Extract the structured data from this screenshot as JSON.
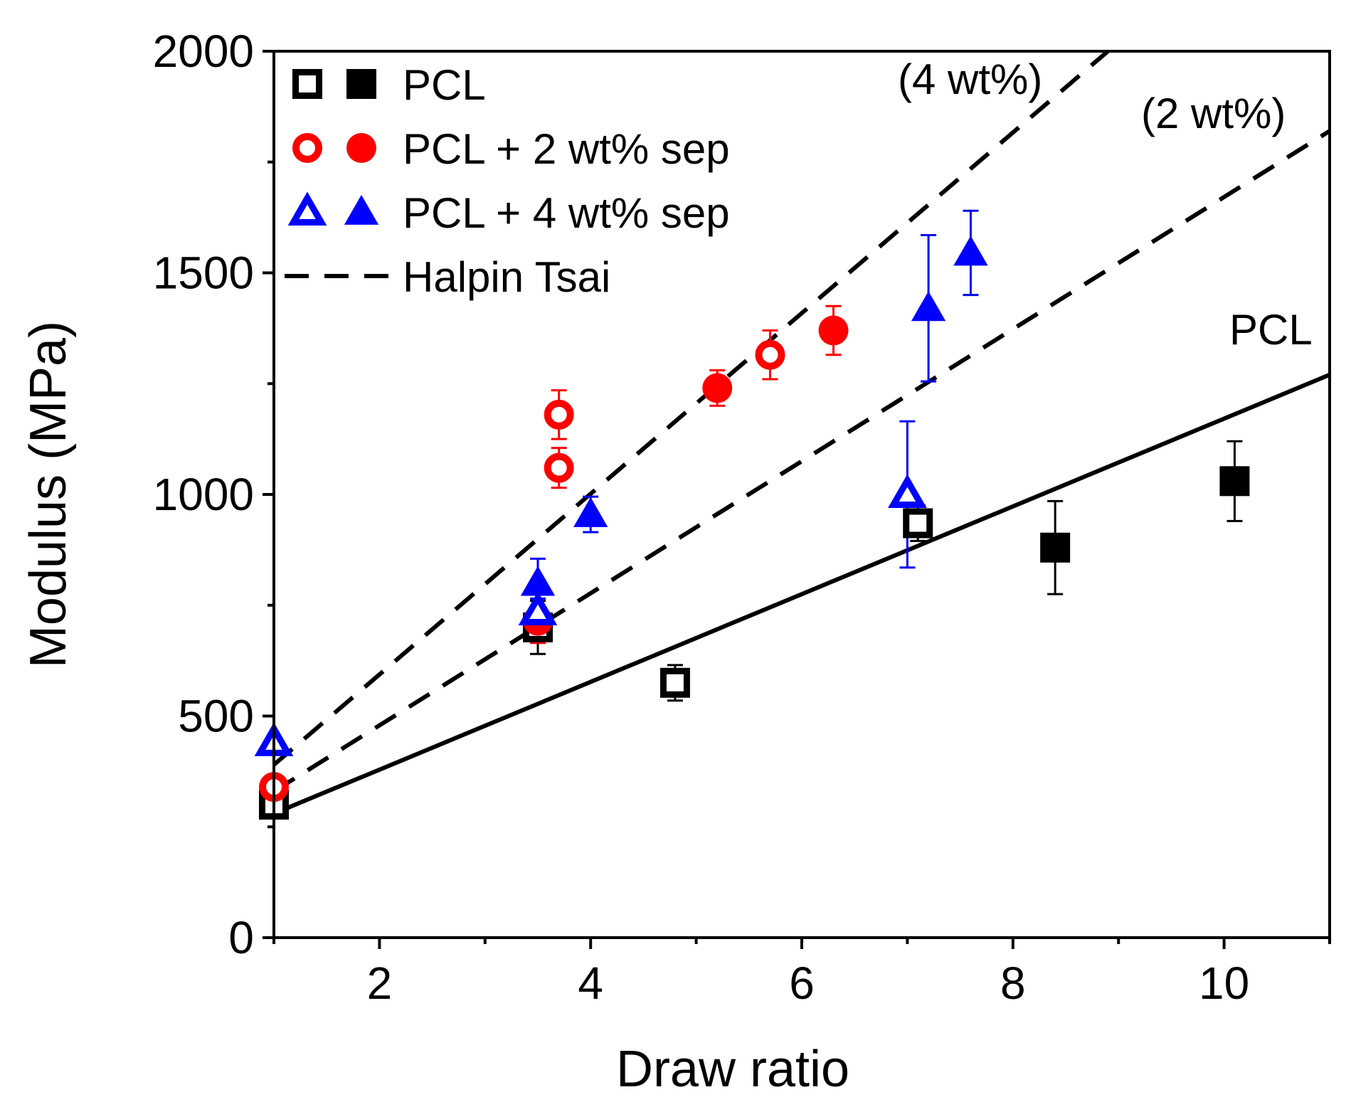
{
  "chart_data": {
    "type": "scatter",
    "xlabel": "Draw ratio",
    "ylabel": "Modulus (MPa)",
    "xlim": [
      1,
      11
    ],
    "ylim": [
      0,
      2000
    ],
    "x_ticks": [
      2,
      4,
      6,
      8,
      10
    ],
    "y_ticks": [
      0,
      500,
      1000,
      1500,
      2000
    ],
    "grid": false,
    "legend_position": "top-left",
    "legend": [
      {
        "label": "PCL",
        "markers": [
          "open-square",
          "filled-square"
        ],
        "color": "#000000"
      },
      {
        "label": "PCL + 2 wt% sep",
        "markers": [
          "open-circle",
          "filled-circle"
        ],
        "color": "#ff0000"
      },
      {
        "label": "PCL + 4 wt% sep",
        "markers": [
          "open-triangle",
          "filled-triangle"
        ],
        "color": "#0000ff"
      },
      {
        "label": "Halpin Tsai",
        "markers": [
          "dashed-line"
        ],
        "color": "#000000"
      }
    ],
    "series": [
      {
        "label_ref": "PCL",
        "marker": "open-square",
        "color": "#000000",
        "points": [
          {
            "x": 1.0,
            "y": 300,
            "err": 0
          },
          {
            "x": 3.5,
            "y": 700,
            "err": 60
          },
          {
            "x": 4.8,
            "y": 575,
            "err": 40
          },
          {
            "x": 7.1,
            "y": 935,
            "err": 40
          }
        ]
      },
      {
        "label_ref": "PCL",
        "marker": "filled-square",
        "color": "#000000",
        "points": [
          {
            "x": 8.4,
            "y": 880,
            "err": 105
          },
          {
            "x": 10.1,
            "y": 1030,
            "err": 90
          }
        ]
      },
      {
        "label_ref": "PCL + 2 wt% sep",
        "marker": "open-circle",
        "color": "#ff0000",
        "points": [
          {
            "x": 1.0,
            "y": 340,
            "err": 0
          },
          {
            "x": 3.7,
            "y": 1180,
            "err": 55
          },
          {
            "x": 3.7,
            "y": 1060,
            "err": 45
          },
          {
            "x": 5.7,
            "y": 1315,
            "err": 55
          }
        ]
      },
      {
        "label_ref": "PCL + 2 wt% sep",
        "marker": "filled-circle",
        "color": "#ff0000",
        "points": [
          {
            "x": 3.5,
            "y": 715,
            "err": 50
          },
          {
            "x": 5.2,
            "y": 1240,
            "err": 40
          },
          {
            "x": 6.3,
            "y": 1370,
            "err": 55
          }
        ]
      },
      {
        "label_ref": "PCL + 4 wt% sep",
        "marker": "open-triangle",
        "color": "#0000ff",
        "points": [
          {
            "x": 1.0,
            "y": 440,
            "err": 0
          },
          {
            "x": 3.5,
            "y": 735,
            "err": 30
          },
          {
            "x": 7.0,
            "y": 1000,
            "err": 165
          }
        ]
      },
      {
        "label_ref": "PCL + 4 wt% sep",
        "marker": "filled-triangle",
        "color": "#0000ff",
        "points": [
          {
            "x": 3.5,
            "y": 800,
            "err": 55
          },
          {
            "x": 4.0,
            "y": 955,
            "err": 40
          },
          {
            "x": 7.2,
            "y": 1420,
            "err": 165
          },
          {
            "x": 7.6,
            "y": 1545,
            "err": 95
          }
        ]
      }
    ],
    "fit_lines": [
      {
        "name": "PCL",
        "style": "solid",
        "color": "#000000",
        "x": [
          1.0,
          11.0
        ],
        "y": [
          280,
          1270
        ]
      },
      {
        "name": "Halpin Tsai",
        "annotation": "(2 wt%)",
        "style": "dashed",
        "color": "#000000",
        "x": [
          1.0,
          11.0
        ],
        "y": [
          330,
          1820
        ]
      },
      {
        "name": "Halpin Tsai",
        "annotation": "(4 wt%)",
        "style": "dashed",
        "color": "#000000",
        "x": [
          1.0,
          8.9
        ],
        "y": [
          390,
          2000
        ]
      }
    ],
    "annotations": [
      "(4 wt%)",
      "(2 wt%)",
      "PCL"
    ]
  }
}
